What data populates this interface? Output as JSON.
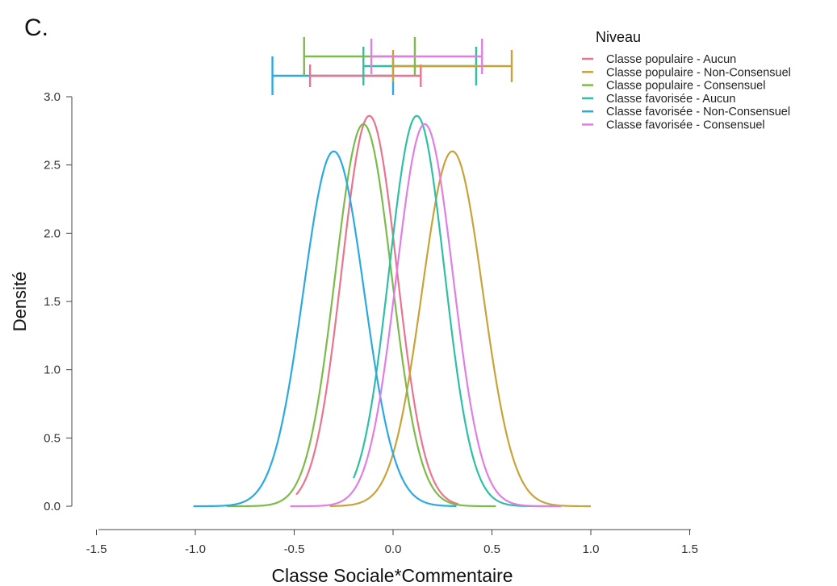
{
  "panel_label": "C.",
  "chart_data": {
    "type": "line",
    "xlabel": "Classe Sociale*Commentaire",
    "ylabel": "Densité",
    "xlim": [
      -1.5,
      1.5
    ],
    "ylim": [
      0,
      3.0
    ],
    "x_ticks": [
      "-1.5",
      "-1.0",
      "-0.5",
      "0.0",
      "0.5",
      "1.0",
      "1.5"
    ],
    "y_ticks": [
      "0.0",
      "0.5",
      "1.0",
      "1.5",
      "2.0",
      "2.5",
      "3.0"
    ],
    "grid": false,
    "legend": {
      "title": "Niveau",
      "position": "top-right"
    },
    "series": [
      {
        "name": "Classe populaire - Aucun",
        "color": "#e8748f",
        "mean": -0.12,
        "peak": 2.86,
        "x_min": -0.49,
        "x_max": 0.33,
        "ci": [
          -0.42,
          0.14
        ]
      },
      {
        "name": "Classe populaire - Non-Consensuel",
        "color": "#c9a23a",
        "mean": 0.3,
        "peak": 2.6,
        "x_min": -0.32,
        "x_max": 1.0,
        "ci": [
          0.0,
          0.6
        ]
      },
      {
        "name": "Classe populaire - Consensuel",
        "color": "#7cbb4a",
        "mean": -0.15,
        "peak": 2.8,
        "x_min": -0.84,
        "x_max": 0.52,
        "ci": [
          -0.45,
          0.11
        ]
      },
      {
        "name": "Classe favorisée - Aucun",
        "color": "#2ebfa5",
        "mean": 0.12,
        "peak": 2.86,
        "x_min": -0.2,
        "x_max": 0.85,
        "ci": [
          -0.15,
          0.42
        ]
      },
      {
        "name": "Classe favorisée - Non-Consensuel",
        "color": "#2aaae0",
        "mean": -0.3,
        "peak": 2.6,
        "x_min": -1.01,
        "x_max": 0.32,
        "ci": [
          -0.61,
          0.0
        ]
      },
      {
        "name": "Classe favorisée - Consensuel",
        "color": "#df7fe3",
        "mean": 0.16,
        "peak": 2.8,
        "x_min": -0.52,
        "x_max": 0.85,
        "ci": [
          -0.11,
          0.45
        ]
      }
    ]
  }
}
